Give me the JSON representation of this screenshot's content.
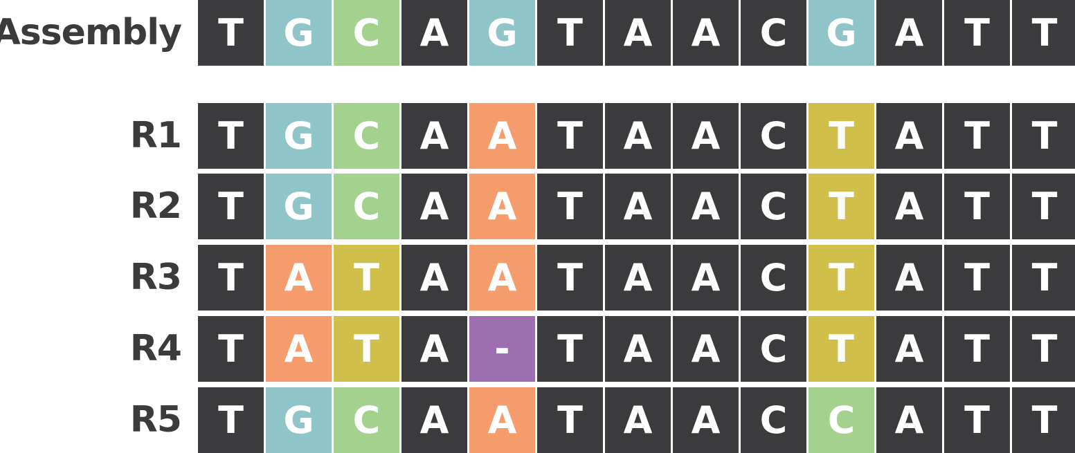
{
  "colors": {
    "default": "#3b3b3d",
    "G": "#8fc4c9",
    "C": "#a4d18d",
    "A": "#f59c6c",
    "T": "#d1bf4b",
    "-": "#9b6fb0"
  },
  "rows": [
    {
      "label": "Assembly",
      "bases": [
        "T",
        "G",
        "C",
        "A",
        "G",
        "T",
        "A",
        "A",
        "C",
        "G",
        "A",
        "T",
        "T"
      ],
      "highlight": [
        false,
        true,
        true,
        false,
        true,
        false,
        false,
        false,
        false,
        true,
        false,
        false,
        false
      ]
    },
    {
      "label": "R1",
      "bases": [
        "T",
        "G",
        "C",
        "A",
        "A",
        "T",
        "A",
        "A",
        "C",
        "T",
        "A",
        "T",
        "T"
      ],
      "highlight": [
        false,
        true,
        true,
        false,
        true,
        false,
        false,
        false,
        false,
        true,
        false,
        false,
        false
      ]
    },
    {
      "label": "R2",
      "bases": [
        "T",
        "G",
        "C",
        "A",
        "A",
        "T",
        "A",
        "A",
        "C",
        "T",
        "A",
        "T",
        "T"
      ],
      "highlight": [
        false,
        true,
        true,
        false,
        true,
        false,
        false,
        false,
        false,
        true,
        false,
        false,
        false
      ]
    },
    {
      "label": "R3",
      "bases": [
        "T",
        "A",
        "T",
        "A",
        "A",
        "T",
        "A",
        "A",
        "C",
        "T",
        "A",
        "T",
        "T"
      ],
      "highlight": [
        false,
        true,
        true,
        false,
        true,
        false,
        false,
        false,
        false,
        true,
        false,
        false,
        false
      ]
    },
    {
      "label": "R4",
      "bases": [
        "T",
        "A",
        "T",
        "A",
        "-",
        "T",
        "A",
        "A",
        "C",
        "T",
        "A",
        "T",
        "T"
      ],
      "highlight": [
        false,
        true,
        true,
        false,
        true,
        false,
        false,
        false,
        false,
        true,
        false,
        false,
        false
      ]
    },
    {
      "label": "R5",
      "bases": [
        "T",
        "G",
        "C",
        "A",
        "A",
        "T",
        "A",
        "A",
        "C",
        "C",
        "A",
        "T",
        "T"
      ],
      "highlight": [
        false,
        true,
        true,
        false,
        true,
        false,
        false,
        false,
        false,
        true,
        false,
        false,
        false
      ]
    }
  ]
}
